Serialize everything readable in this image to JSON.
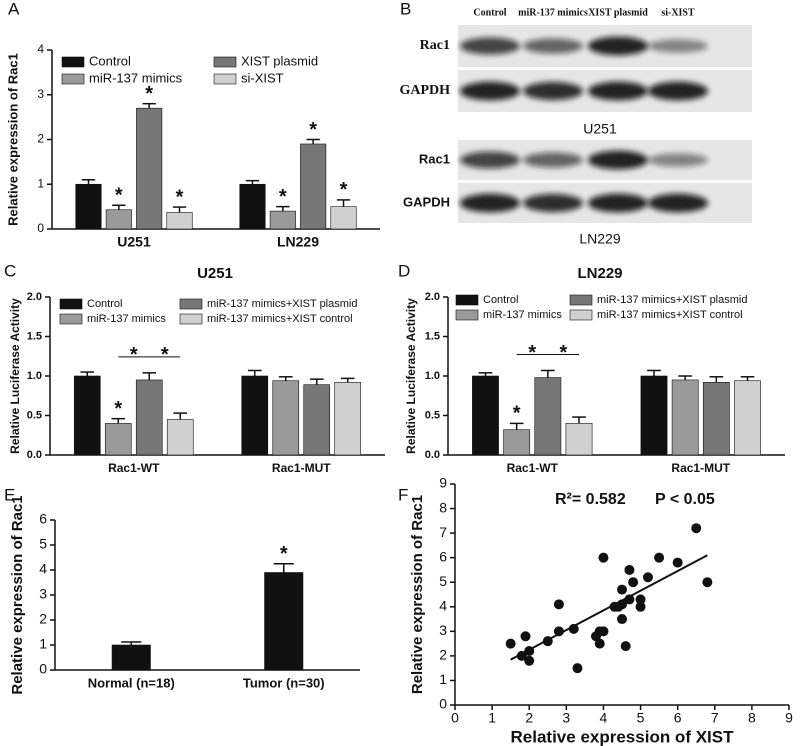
{
  "chart_data": [
    {
      "type": "bar",
      "panel": "A",
      "y_label": "Relative expression of Rac1",
      "categories": [
        "U251",
        "LN229"
      ],
      "ylim": [
        0,
        4
      ],
      "yticks": [
        0,
        1,
        2,
        3,
        4
      ],
      "series": [
        {
          "name": "Control",
          "color": "#111111",
          "values": [
            1.0,
            1.0
          ],
          "errors": [
            0.1,
            0.08
          ],
          "significance": [
            null,
            null
          ]
        },
        {
          "name": "miR-137 mimics",
          "color": "#9a9a9a",
          "values": [
            0.43,
            0.4
          ],
          "errors": [
            0.1,
            0.1
          ],
          "significance": [
            "*",
            "*"
          ]
        },
        {
          "name": "XIST plasmid",
          "color": "#777777",
          "values": [
            2.7,
            1.9
          ],
          "errors": [
            0.1,
            0.1
          ],
          "significance": [
            "*",
            "*"
          ]
        },
        {
          "name": "si-XIST",
          "color": "#d0d0d0",
          "values": [
            0.37,
            0.5
          ],
          "errors": [
            0.12,
            0.15
          ],
          "significance": [
            "*",
            "*"
          ]
        }
      ]
    },
    {
      "type": "bar",
      "panel": "C",
      "title": "U251",
      "y_label": "Relative Luciferase Activity",
      "categories": [
        "Rac1-WT",
        "Rac1-MUT"
      ],
      "ylim": [
        0,
        2
      ],
      "yticks": [
        {
          "value": 0,
          "label": "0.0"
        },
        {
          "value": 0.5,
          "label": "0.5"
        },
        {
          "value": 1,
          "label": "1.0"
        },
        {
          "value": 1.5,
          "label": "1.5"
        },
        {
          "value": 2,
          "label": "2.0"
        }
      ],
      "bracket_labels": [
        "*",
        "*"
      ],
      "series": [
        {
          "name": "Control",
          "color": "#111111",
          "values": [
            1.0,
            1.0
          ],
          "errors": [
            0.05,
            0.07
          ],
          "significance": [
            null,
            null
          ]
        },
        {
          "name": "miR-137 mimics",
          "color": "#9a9a9a",
          "values": [
            0.4,
            0.94
          ],
          "errors": [
            0.06,
            0.05
          ],
          "significance": [
            "*",
            null
          ]
        },
        {
          "name": "miR-137 mimics+XIST plasmid",
          "color": "#777777",
          "values": [
            0.95,
            0.89
          ],
          "errors": [
            0.09,
            0.07
          ],
          "significance": [
            null,
            null
          ]
        },
        {
          "name": "miR-137 mimics+XIST control",
          "color": "#d0d0d0",
          "values": [
            0.45,
            0.92
          ],
          "errors": [
            0.08,
            0.05
          ],
          "significance": [
            null,
            null
          ]
        }
      ]
    },
    {
      "type": "bar",
      "panel": "D",
      "title": "LN229",
      "y_label": "Relative Luciferase Activity",
      "categories": [
        "Rac1-WT",
        "Rac1-MUT"
      ],
      "ylim": [
        0,
        2
      ],
      "yticks": [
        {
          "value": 0,
          "label": "0.0"
        },
        {
          "value": 0.5,
          "label": "0.5"
        },
        {
          "value": 1,
          "label": "1.0"
        },
        {
          "value": 1.5,
          "label": "1.5"
        },
        {
          "value": 2,
          "label": "2.0"
        }
      ],
      "bracket_labels": [
        "*",
        "*"
      ],
      "series": [
        {
          "name": "Control",
          "color": "#111111",
          "values": [
            1.0,
            1.0
          ],
          "errors": [
            0.04,
            0.07
          ],
          "significance": [
            null,
            null
          ]
        },
        {
          "name": "miR-137 mimics",
          "color": "#9a9a9a",
          "values": [
            0.32,
            0.95
          ],
          "errors": [
            0.08,
            0.05
          ],
          "significance": [
            "*",
            null
          ]
        },
        {
          "name": "miR-137 mimics+XIST plasmid",
          "color": "#777777",
          "values": [
            0.98,
            0.92
          ],
          "errors": [
            0.09,
            0.07
          ],
          "significance": [
            null,
            null
          ]
        },
        {
          "name": "miR-137 mimics+XIST control",
          "color": "#d0d0d0",
          "values": [
            0.4,
            0.94
          ],
          "errors": [
            0.08,
            0.05
          ],
          "significance": [
            null,
            null
          ]
        }
      ]
    },
    {
      "type": "bar",
      "panel": "E",
      "y_label": "Relative expression of Rac1",
      "categories": [
        "Normal (n=18)",
        "Tumor (n=30)"
      ],
      "ylim": [
        0,
        6
      ],
      "yticks": [
        0,
        1,
        2,
        3,
        4,
        5,
        6
      ],
      "series": [
        {
          "color": "#111111",
          "values": [
            1.0,
            3.9
          ],
          "errors": [
            0.12,
            0.35
          ],
          "significance": [
            null,
            "*"
          ]
        }
      ]
    },
    {
      "type": "scatter",
      "panel": "F",
      "x_label": "Relative expression of XIST",
      "y_label": "Relative expression of Rac1",
      "annotation": "R²= 0.582",
      "p_text": "P < 0.05",
      "xlim": [
        0,
        9
      ],
      "ylim": [
        0,
        9
      ],
      "xticks": [
        0,
        1,
        2,
        3,
        4,
        5,
        6,
        7,
        8,
        9
      ],
      "yticks": [
        0,
        1,
        2,
        3,
        4,
        5,
        6,
        7,
        8,
        9
      ],
      "color": "#111111",
      "x": [
        1.5,
        1.8,
        1.9,
        2.0,
        2.0,
        2.5,
        2.8,
        2.8,
        3.2,
        3.3,
        3.8,
        3.9,
        3.9,
        4.0,
        4.0,
        4.3,
        4.4,
        4.5,
        4.5,
        4.5,
        4.6,
        4.7,
        4.7,
        4.8,
        5.0,
        5.0,
        5.2,
        5.5,
        6.0,
        6.5,
        6.8
      ],
      "y": [
        2.5,
        2.0,
        2.8,
        1.8,
        2.2,
        2.6,
        3.0,
        4.1,
        3.1,
        1.5,
        2.8,
        2.5,
        3.0,
        3.0,
        6.0,
        4.0,
        4.0,
        3.5,
        4.7,
        4.1,
        2.4,
        4.3,
        5.5,
        5.0,
        4.3,
        4.0,
        5.2,
        6.0,
        5.8,
        7.2,
        5.0
      ],
      "fit_line": {
        "x": [
          1.5,
          6.8
        ],
        "y": [
          1.85,
          6.1
        ]
      }
    }
  ],
  "blots": {
    "panel": "B",
    "lanes": [
      "Control",
      "miR-137 mimics",
      "XIST plasmid",
      "si-XIST"
    ],
    "blocks": [
      {
        "caption": "U251",
        "rows": [
          "Rac1",
          "GAPDH"
        ]
      },
      {
        "caption": "LN229",
        "rows": [
          "Rac1",
          "GAPDH"
        ]
      }
    ]
  }
}
